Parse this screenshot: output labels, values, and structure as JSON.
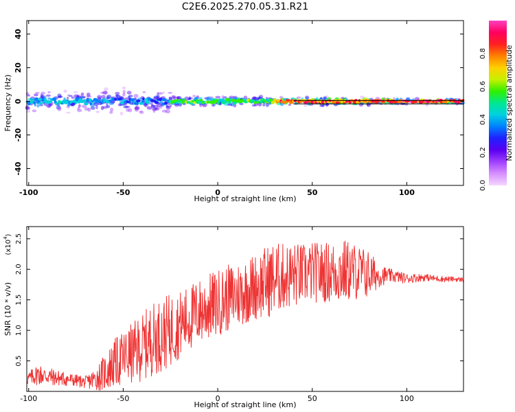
{
  "title": "C2E6.2025.270.05.31.R21",
  "colors": {
    "snr_line": "#ee3333",
    "background": "#ffffff",
    "colormap": [
      "#f4d6ff",
      "#d890ff",
      "#a040ff",
      "#5a00f0",
      "#2020ff",
      "#0080ff",
      "#00d0e0",
      "#00e890",
      "#30f000",
      "#c8f000",
      "#ffd000",
      "#ff8000",
      "#ff2020",
      "#ff0060",
      "#ff40c0"
    ]
  },
  "chart_data": [
    {
      "type": "heatmap",
      "name": "spectrogram",
      "xlabel": "Height of straight line (km)",
      "ylabel": "Frequency (Hz)",
      "xlim": [
        -101,
        130
      ],
      "ylim": [
        -50,
        48
      ],
      "xticks": [
        -100,
        -50,
        0,
        50,
        100
      ],
      "yticks": [
        40,
        20,
        0,
        -20,
        -40
      ],
      "yticklabels": [
        "40",
        "20",
        "0",
        "-20",
        "-40"
      ],
      "centerline_hz": [
        0.5,
        -1.5
      ],
      "colorbar": {
        "label": "Normalized spectral amplitude",
        "range": [
          0,
          1
        ],
        "ticks": [
          0.0,
          0.2,
          0.4,
          0.6,
          0.8
        ],
        "ticklabels": [
          "0.0",
          "0.2",
          "0.4",
          "0.6",
          "0.8"
        ]
      },
      "bands": [
        {
          "x_start": -101,
          "x_end": -60,
          "spread_hz": 8,
          "peak_amplitude": 0.45
        },
        {
          "x_start": -60,
          "x_end": -25,
          "spread_hz": 10,
          "peak_amplitude": 0.4
        },
        {
          "x_start": -25,
          "x_end": 30,
          "spread_hz": 4,
          "peak_amplitude": 0.6
        },
        {
          "x_start": 30,
          "x_end": 80,
          "spread_hz": 3,
          "peak_amplitude": 0.9
        },
        {
          "x_start": 80,
          "x_end": 130,
          "spread_hz": 2,
          "peak_amplitude": 0.95
        }
      ]
    },
    {
      "type": "line",
      "name": "snr",
      "xlabel": "Height of straight line (km)",
      "ylabel": "SNR (10 * v/v)",
      "yscale_label": "(x10",
      "yscale_exponent": "4",
      "yscale_close": ")",
      "xlim": [
        -101,
        130
      ],
      "ylim": [
        0,
        2.7
      ],
      "xticks": [
        -100,
        -50,
        0,
        50,
        100
      ],
      "yticks": [
        0.5,
        1.0,
        1.5,
        2.0,
        2.5
      ],
      "yticklabels": [
        "0.5",
        "1.0",
        "1.5",
        "2.0",
        "2.5"
      ],
      "series": [
        {
          "name": "SNR",
          "x": [
            -101,
            -95,
            -90,
            -85,
            -80,
            -75,
            -70,
            -65,
            -60,
            -55,
            -50,
            -45,
            -40,
            -35,
            -30,
            -25,
            -20,
            -15,
            -10,
            -5,
            0,
            5,
            10,
            15,
            20,
            25,
            30,
            35,
            40,
            45,
            50,
            55,
            60,
            65,
            70,
            75,
            80,
            85,
            90,
            95,
            100,
            105,
            110,
            115,
            120,
            125,
            130
          ],
          "mean": [
            0.2,
            0.28,
            0.25,
            0.22,
            0.2,
            0.18,
            0.15,
            0.2,
            0.3,
            0.45,
            0.55,
            0.62,
            0.72,
            0.85,
            0.92,
            1.0,
            1.1,
            1.2,
            1.3,
            1.38,
            1.45,
            1.52,
            1.58,
            1.65,
            1.72,
            1.78,
            1.85,
            1.88,
            1.9,
            1.92,
            1.95,
            1.95,
            1.95,
            1.97,
            1.97,
            1.95,
            1.92,
            1.9,
            1.9,
            1.88,
            1.85,
            1.86,
            1.87,
            1.85,
            1.84,
            1.84,
            1.83
          ],
          "noise": [
            0.1,
            0.18,
            0.15,
            0.13,
            0.12,
            0.1,
            0.1,
            0.18,
            0.3,
            0.4,
            0.45,
            0.5,
            0.55,
            0.6,
            0.6,
            0.6,
            0.55,
            0.55,
            0.55,
            0.55,
            0.55,
            0.55,
            0.55,
            0.55,
            0.55,
            0.6,
            0.6,
            0.55,
            0.55,
            0.5,
            0.5,
            0.5,
            0.5,
            0.55,
            0.5,
            0.45,
            0.4,
            0.2,
            0.12,
            0.1,
            0.08,
            0.07,
            0.06,
            0.05,
            0.05,
            0.04,
            0.04
          ]
        }
      ]
    }
  ]
}
